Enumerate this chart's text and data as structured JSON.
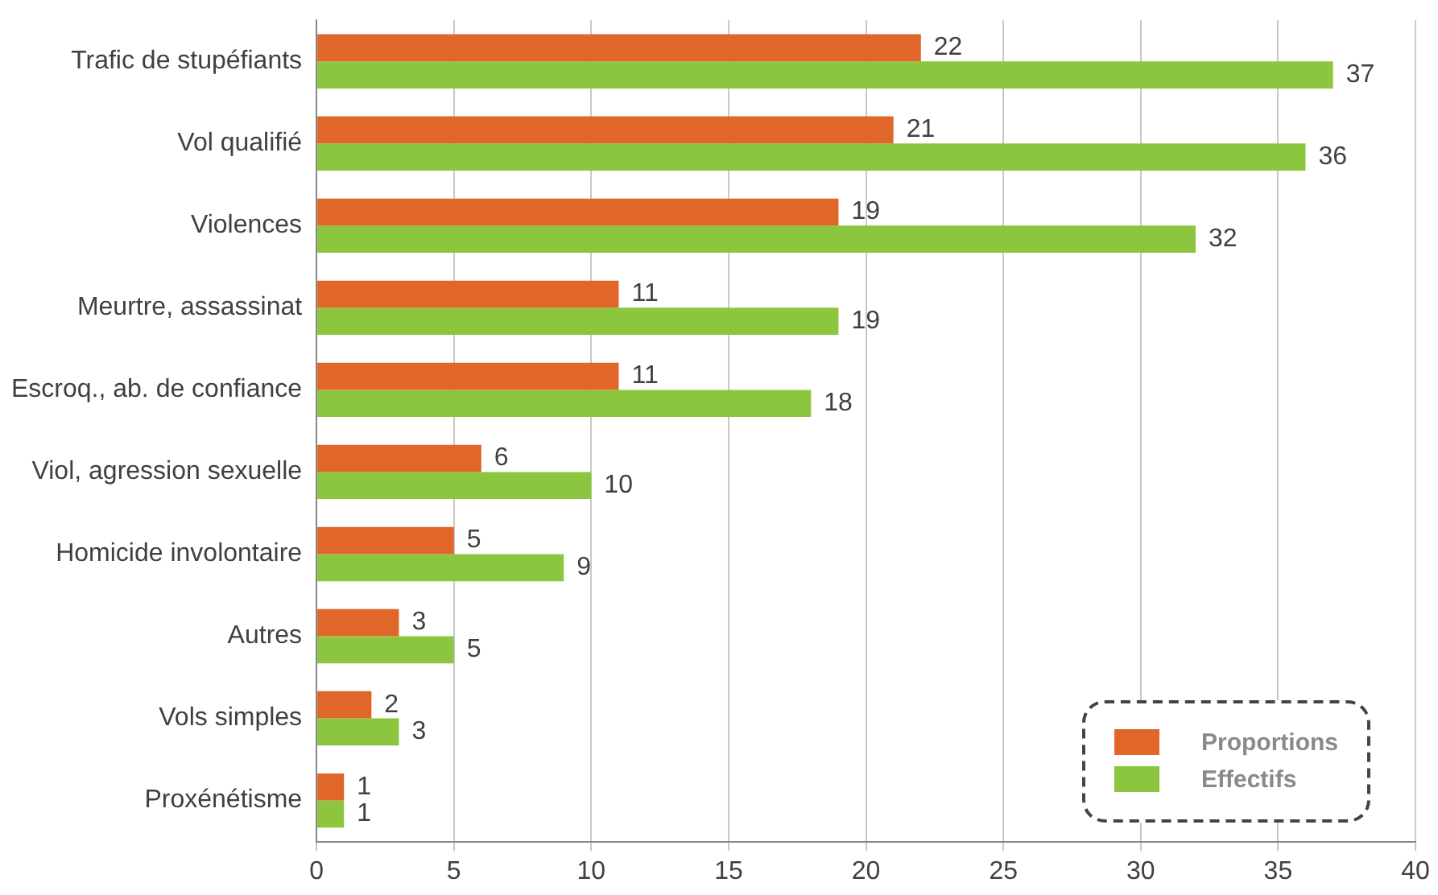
{
  "chart_data": {
    "type": "bar",
    "orientation": "horizontal",
    "categories": [
      "Trafic de stupéfiants",
      "Vol qualifié",
      "Violences",
      "Meurtre, assassinat",
      "Escroq., ab. de confiance",
      "Viol, agression sexuelle",
      "Homicide involontaire",
      "Autres",
      "Vols simples",
      "Proxénétisme"
    ],
    "series": [
      {
        "name": "Proportions",
        "color": "#e0662a",
        "values": [
          22,
          21,
          19,
          11,
          11,
          6,
          5,
          3,
          2,
          1
        ]
      },
      {
        "name": "Effectifs",
        "color": "#8cc63e",
        "values": [
          37,
          36,
          32,
          19,
          18,
          10,
          9,
          5,
          3,
          1
        ]
      }
    ],
    "xlim": [
      0,
      40
    ],
    "xticks": [
      0,
      5,
      10,
      15,
      20,
      25,
      30,
      35,
      40
    ],
    "grid": "x",
    "legend": "bottom right",
    "data_labels": true
  }
}
